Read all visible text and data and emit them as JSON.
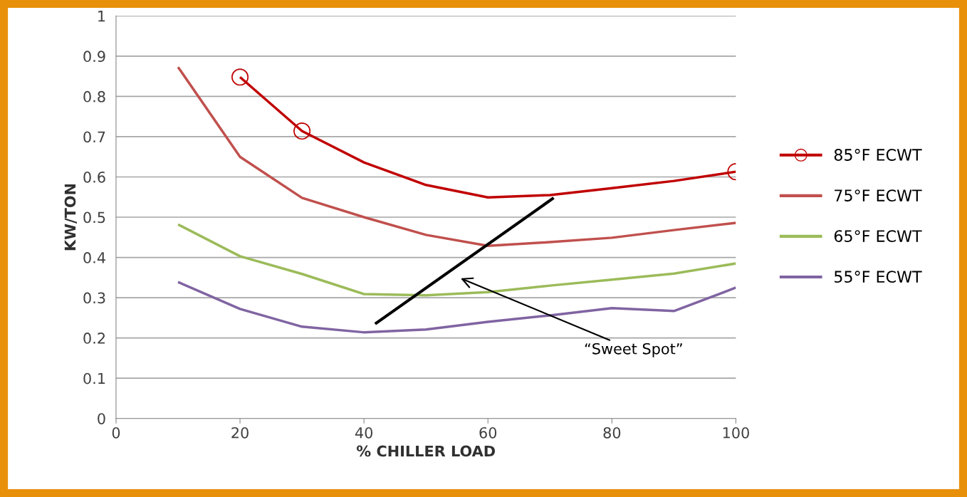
{
  "chart_data": {
    "type": "line",
    "xlabel": "% CHILLER LOAD",
    "ylabel": "KW/TON",
    "xlim": [
      0,
      100
    ],
    "xticks": [
      0,
      20,
      40,
      60,
      80,
      100
    ],
    "ylim": [
      0,
      1
    ],
    "yticks": [
      0,
      0.1,
      0.2,
      0.3,
      0.4,
      0.5,
      0.6,
      0.7,
      0.8,
      0.9,
      1
    ],
    "grid": "y",
    "legend": "right",
    "series": [
      {
        "name": "85°F ECWT",
        "color": "#c00000",
        "x": [
          20,
          30,
          40,
          50,
          60,
          70,
          80,
          90,
          100
        ],
        "values": [
          0.848,
          0.714,
          0.636,
          0.58,
          0.549,
          0.555,
          0.572,
          0.59,
          0.613
        ]
      },
      {
        "type": "scatter",
        "marker": "circle",
        "color": "#c00000",
        "x": [
          20,
          30,
          100
        ],
        "values": [
          0.848,
          0.714,
          0.613
        ]
      },
      {
        "name": "75°F ECWT",
        "color": "#c0504d",
        "x": [
          10,
          20,
          30,
          40,
          50,
          60,
          70,
          80,
          90,
          100
        ],
        "values": [
          0.873,
          0.65,
          0.548,
          0.5,
          0.456,
          0.429,
          0.438,
          0.449,
          0.468,
          0.486
        ]
      },
      {
        "name": "65°F ECWT",
        "color": "#9bbb59",
        "x": [
          10,
          20,
          30,
          40,
          50,
          60,
          70,
          80,
          90,
          100
        ],
        "values": [
          0.482,
          0.403,
          0.359,
          0.309,
          0.306,
          0.314,
          0.33,
          0.345,
          0.36,
          0.385
        ]
      },
      {
        "name": "55°F ECWT",
        "color": "#8064a2",
        "x": [
          10,
          20,
          30,
          40,
          50,
          60,
          70,
          80,
          90,
          100
        ],
        "values": [
          0.339,
          0.272,
          0.228,
          0.214,
          0.221,
          0.24,
          0.256,
          0.274,
          0.267,
          0.325
        ]
      },
      {
        "color": "#000000",
        "x": [
          41.8,
          70.6
        ],
        "values": [
          0.235,
          0.548
        ]
      }
    ],
    "annotations": [
      "“Sweet Spot”"
    ]
  }
}
